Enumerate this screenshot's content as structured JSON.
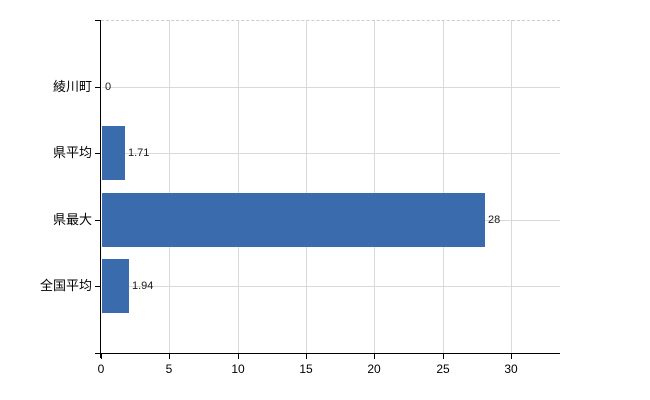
{
  "chart_data": {
    "type": "bar",
    "orientation": "horizontal",
    "title": "",
    "xlabel": "",
    "ylabel": "",
    "categories": [
      "綾川町",
      "県平均",
      "県最大",
      "全国平均"
    ],
    "values": [
      0,
      1.71,
      28,
      1.94
    ],
    "value_labels": [
      "0",
      "1.71",
      "28",
      "1.94"
    ],
    "xticks": [
      0,
      5,
      10,
      15,
      20,
      25,
      30
    ],
    "xtick_labels": [
      "0",
      "5",
      "10",
      "15",
      "20",
      "25",
      "30"
    ],
    "xlim": [
      0,
      33.6
    ],
    "grid": true,
    "legend": false,
    "bar_color": "#3a6bac",
    "axis_color": "#000000",
    "gridline_color": "#d9d9d9",
    "top_border_color": "#c9cfc9",
    "label_color": "#000000",
    "value_label_color": "#1a1a1a"
  }
}
